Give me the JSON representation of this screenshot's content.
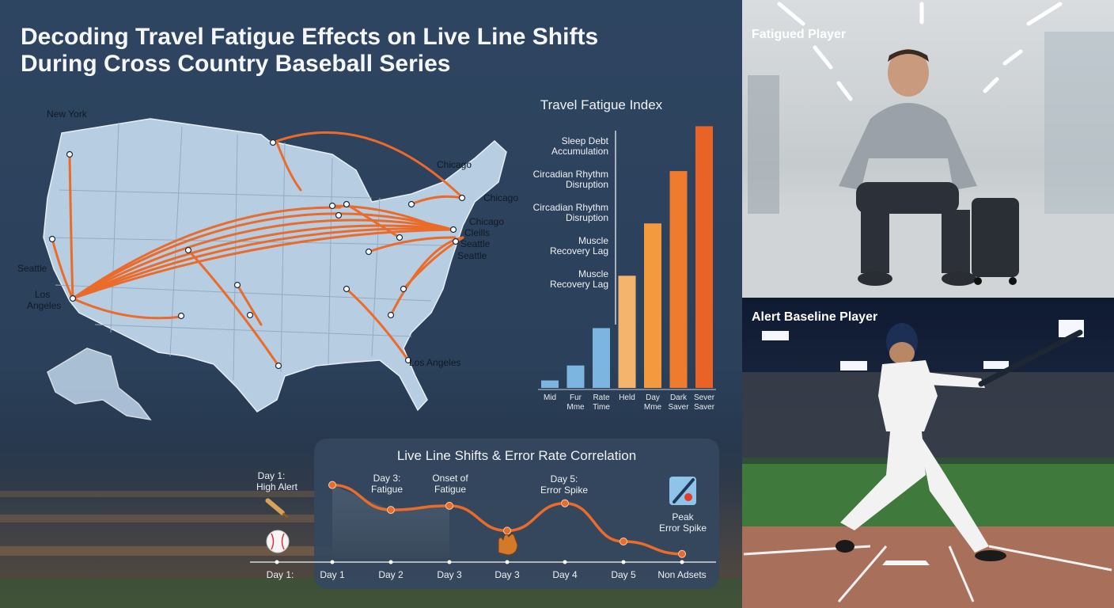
{
  "title": {
    "line1": "Decoding Travel Fatigue Effects on Live Line Shifts",
    "line2": "During Cross Country Baseball Series"
  },
  "map": {
    "labels": {
      "new_york": "New York",
      "seattle_west": "Seattle",
      "los_angeles_west_1": "Los",
      "los_angeles_west_2": "Angeles",
      "chicago_1": "Chicago",
      "chicago_2": "Chicago",
      "chicago_3": "Chicago",
      "cleveland": "Cleills",
      "seattle_east_1": "Seattle",
      "seattle_east_2": "Seattle",
      "los_angeles_south": "Los Angeles"
    }
  },
  "fatigue_index": {
    "title": "Travel Fatigue Index",
    "factors": [
      {
        "line1": "Sleep Debt",
        "line2": "Accumulation"
      },
      {
        "line1": "Circadian Rhythm",
        "line2": "Disruption"
      },
      {
        "line1": "Circadian Rhythm",
        "line2": "Disruption"
      },
      {
        "line1": "Muscle",
        "line2": "Recovery Lag"
      },
      {
        "line1": "Muscle",
        "line2": "Recovery Lag"
      }
    ]
  },
  "chart_data": [
    {
      "type": "bar",
      "title": "Travel Fatigue Index",
      "categories": [
        [
          "Mid",
          ""
        ],
        [
          "Fur",
          "Mme"
        ],
        [
          "Rate",
          "Time"
        ],
        [
          "Held",
          ""
        ],
        [
          "Day",
          "Mme"
        ],
        [
          "Dark",
          "Saver"
        ],
        [
          "Sever",
          "Saver"
        ]
      ],
      "values": [
        1,
        3,
        8,
        15,
        22,
        29,
        35
      ],
      "ylim": [
        0,
        36
      ],
      "colors": [
        "#7cb6e0",
        "#7cb6e0",
        "#7cb6e0",
        "#f4b46e",
        "#f39a3e",
        "#ef7b2e",
        "#ea6326"
      ]
    },
    {
      "type": "line",
      "title": "Live Line Shifts & Error Rate Correlation",
      "categories": [
        "Day 1",
        "Day 2",
        "Day 3",
        "Day 3",
        "Day 4",
        "Day 5",
        "Non Adsets"
      ],
      "values": [
        88,
        58,
        63,
        33,
        66,
        20,
        5
      ],
      "ylim": [
        0,
        100
      ],
      "annotations": [
        {
          "line1": "Day 3:",
          "line2": "Fatigue"
        },
        {
          "line1": "Onset of",
          "line2": "Fatigue"
        },
        {
          "line1": "Day 5:",
          "line2": "Error Spike"
        },
        {
          "line1": "Peak",
          "line2": "Error Spike"
        }
      ],
      "left_annotation": {
        "line1": "Day 1:",
        "line2": "High Alert"
      },
      "axis_start_label": "Day 1:",
      "color": "#ea6b2a"
    }
  ],
  "photos": {
    "top_label": "Fatigued Player",
    "bottom_label": "Alert Baseline Player"
  },
  "icons": {
    "bat": "baseball-bat-icon",
    "ball": "baseball-icon",
    "glove": "glove-icon",
    "bat_ball": "bat-and-ball-icon"
  },
  "colors": {
    "accent": "#ea6b2a",
    "background": "#2a3f57",
    "map_land": "#b7cde2"
  }
}
